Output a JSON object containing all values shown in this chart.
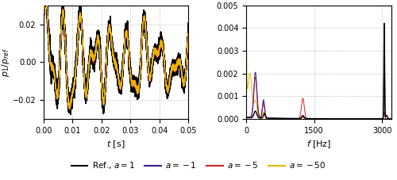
{
  "left_xlim": [
    0.0,
    0.05
  ],
  "left_ylim": [
    -0.03,
    0.03
  ],
  "left_xlabel": "$t$ [s]",
  "left_ylabel": "$p_1/p_{ref}$",
  "left_xticks": [
    0.0,
    0.01,
    0.02,
    0.03,
    0.04,
    0.05
  ],
  "left_yticks": [
    -0.02,
    0.0,
    0.02
  ],
  "right_xlim": [
    0,
    3200
  ],
  "right_ylim": [
    0.0,
    0.005
  ],
  "right_xlabel": "$f$ [Hz]",
  "right_yticks": [
    0.0,
    0.001,
    0.002,
    0.003,
    0.004,
    0.005
  ],
  "right_xticks": [
    0,
    1500,
    3000
  ],
  "colors": {
    "ref": "#000000",
    "a_m1": "#3b1a8a",
    "a_m5": "#cc2222",
    "a_m50": "#e8b400"
  },
  "legend_labels": [
    "Ref., $a=1$",
    "$a=-1$",
    "$a=-5$",
    "$a=-50$"
  ],
  "grid_color": "#aaaaaa",
  "grid_style": "dotted"
}
